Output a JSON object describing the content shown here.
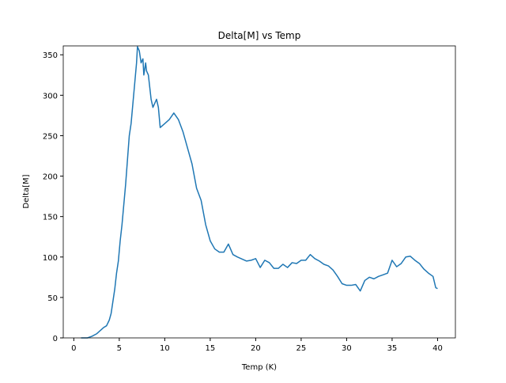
{
  "chart_data": {
    "type": "line",
    "title": "Delta[M] vs Temp",
    "x_label": "Temp (K)",
    "y_label": "Delta[M]",
    "series": [
      {
        "name": "Delta[M]",
        "color": "#1f77b4",
        "x": [
          0.8,
          1.5,
          2,
          2.5,
          3,
          3.3,
          3.6,
          3.9,
          4.1,
          4.3,
          4.5,
          4.7,
          4.9,
          5.1,
          5.3,
          5.5,
          5.7,
          5.9,
          6.1,
          6.3,
          6.5,
          6.7,
          6.9,
          7.0,
          7.2,
          7.4,
          7.6,
          7.7,
          7.9,
          8.0,
          8.2,
          8.5,
          8.7,
          8.9,
          9.1,
          9.3,
          9.5,
          9.7,
          10,
          10.5,
          11,
          11.5,
          12,
          12.5,
          13,
          13.5,
          14,
          14.5,
          15,
          15.5,
          16,
          16.5,
          17,
          17.5,
          18,
          19,
          19.5,
          20,
          20.5,
          21,
          21.5,
          22,
          22.5,
          23,
          23.5,
          24,
          24.5,
          25,
          25.5,
          26,
          26.5,
          27,
          27.5,
          28,
          28.5,
          29,
          29.5,
          30,
          30.5,
          31,
          31.5,
          32,
          32.5,
          33,
          33.5,
          34,
          34.5,
          35,
          35.5,
          36,
          36.5,
          37,
          37.5,
          38,
          38.5,
          39,
          39.5,
          39.8,
          40
        ],
        "values": [
          0,
          0,
          2,
          5,
          10,
          13,
          15,
          22,
          30,
          45,
          60,
          80,
          95,
          120,
          140,
          165,
          190,
          220,
          250,
          265,
          290,
          315,
          340,
          360,
          355,
          340,
          345,
          325,
          340,
          330,
          325,
          295,
          285,
          290,
          295,
          285,
          260,
          262,
          265,
          270,
          278,
          270,
          255,
          235,
          215,
          185,
          170,
          140,
          120,
          110,
          106,
          106,
          116,
          103,
          100,
          95,
          96,
          98,
          87,
          96,
          93,
          86,
          86,
          91,
          87,
          93,
          92,
          96,
          96,
          103,
          98,
          95,
          91,
          89,
          84,
          76,
          67,
          65,
          65,
          66,
          58,
          71,
          75,
          73,
          76,
          78,
          80,
          96,
          88,
          92,
          100,
          101,
          96,
          92,
          85,
          80,
          76,
          62,
          61
        ]
      }
    ],
    "xlim": [
      -1.16,
      41.96
    ],
    "xticks": [
      0,
      5,
      10,
      15,
      20,
      25,
      30,
      35,
      40
    ],
    "ylim": [
      0,
      361
    ],
    "yticks": [
      0,
      50,
      100,
      150,
      200,
      250,
      300,
      350
    ]
  }
}
